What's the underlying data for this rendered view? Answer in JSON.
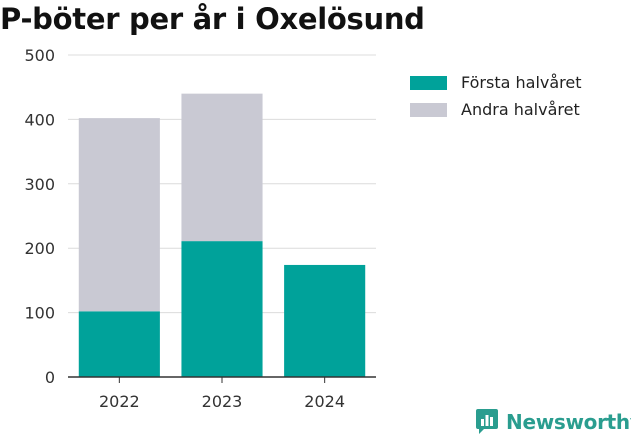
{
  "title": "P-böter per år i Oxelösund",
  "brand": {
    "name": "Newsworthy",
    "icon": "newsworthy-logo-icon",
    "color": "#2a9d8f"
  },
  "legend": [
    {
      "label": "Första halvåret",
      "color": "#00a29a"
    },
    {
      "label": "Andra halvåret",
      "color": "#c9c9d3"
    }
  ],
  "chart_data": {
    "type": "bar",
    "stacked": true,
    "categories": [
      "2022",
      "2023",
      "2024"
    ],
    "series": [
      {
        "name": "Första halvåret",
        "values": [
          102,
          211,
          174
        ],
        "color": "#00a29a"
      },
      {
        "name": "Andra halvåret",
        "values": [
          300,
          229,
          null
        ],
        "color": "#c9c9d3"
      }
    ],
    "ylim": [
      0,
      500
    ],
    "yticks": [
      0,
      100,
      200,
      300,
      400,
      500
    ],
    "grid": true,
    "legend_position": "right"
  }
}
